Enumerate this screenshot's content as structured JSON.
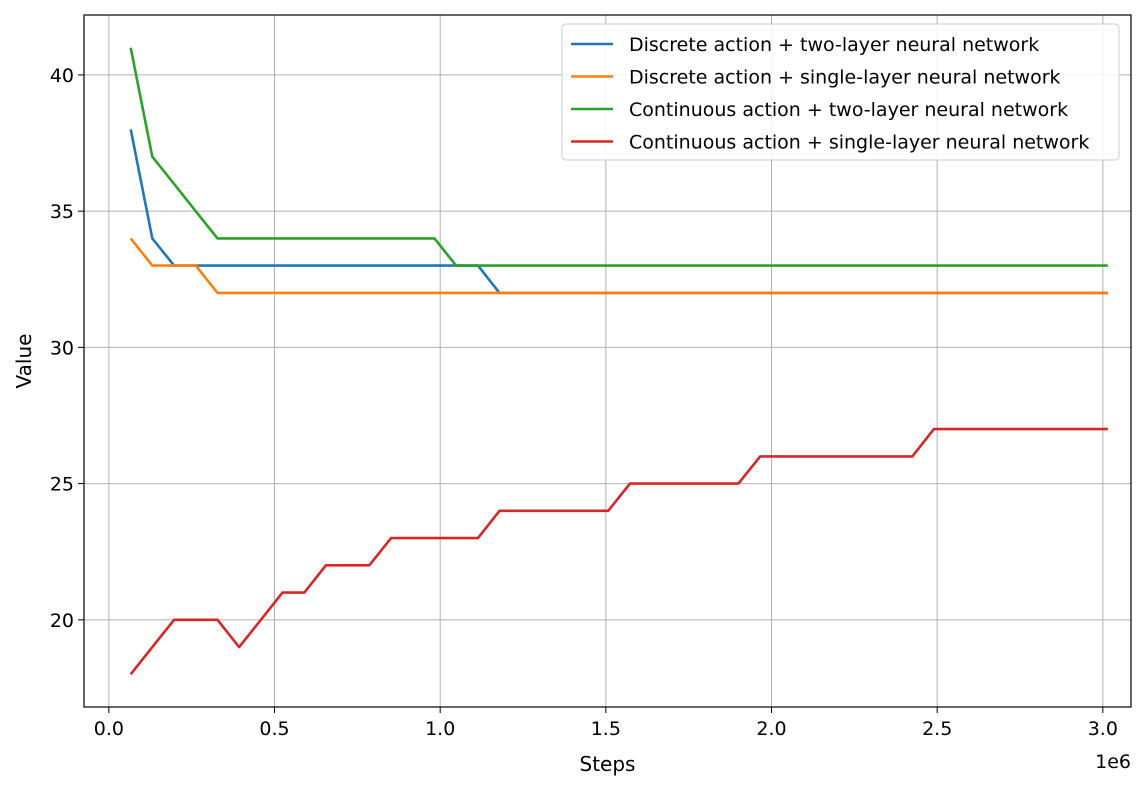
{
  "chart_data": {
    "type": "line",
    "title": "",
    "xlabel": "Steps",
    "ylabel": "Value",
    "x_scale_label": "1e6",
    "xlim": [
      -0.075,
      3.085
    ],
    "ylim": [
      16.8,
      42.2
    ],
    "xticks": [
      0.0,
      0.5,
      1.0,
      1.5,
      2.0,
      2.5,
      3.0
    ],
    "xtick_labels": [
      "0.0",
      "0.5",
      "1.0",
      "1.5",
      "2.0",
      "2.5",
      "3.0"
    ],
    "yticks": [
      20,
      25,
      30,
      35,
      40
    ],
    "ytick_labels": [
      "20",
      "25",
      "30",
      "35",
      "40"
    ],
    "grid": true,
    "legend_position": "top-right",
    "x": [
      0.066,
      0.131,
      0.197,
      0.262,
      0.328,
      0.393,
      0.459,
      0.524,
      0.59,
      0.655,
      0.721,
      0.786,
      0.852,
      0.917,
      0.983,
      1.048,
      1.114,
      1.179,
      1.245,
      1.31,
      1.376,
      1.442,
      1.507,
      1.573,
      1.638,
      1.704,
      1.769,
      1.835,
      1.9,
      1.966,
      2.032,
      2.097,
      2.163,
      2.228,
      2.294,
      2.359,
      2.425,
      2.49,
      2.556,
      2.621,
      2.687,
      2.752,
      2.818,
      2.883,
      2.949,
      3.015
    ],
    "series": [
      {
        "name": "Discrete action + two-layer neural network",
        "color": "#1f77b4",
        "values": [
          38,
          34,
          33,
          33,
          33,
          33,
          33,
          33,
          33,
          33,
          33,
          33,
          33,
          33,
          33,
          33,
          33,
          32,
          32,
          32,
          32,
          32,
          32,
          32,
          32,
          32,
          32,
          32,
          32,
          32,
          32,
          32,
          32,
          32,
          32,
          32,
          32,
          32,
          32,
          32,
          32,
          32,
          32,
          32,
          32,
          32
        ]
      },
      {
        "name": "Discrete action + single-layer neural network",
        "color": "#ff7f0e",
        "values": [
          34,
          33,
          33,
          33,
          32,
          32,
          32,
          32,
          32,
          32,
          32,
          32,
          32,
          32,
          32,
          32,
          32,
          32,
          32,
          32,
          32,
          32,
          32,
          32,
          32,
          32,
          32,
          32,
          32,
          32,
          32,
          32,
          32,
          32,
          32,
          32,
          32,
          32,
          32,
          32,
          32,
          32,
          32,
          32,
          32,
          32
        ]
      },
      {
        "name": "Continuous action + two-layer neural network",
        "color": "#2ca02c",
        "values": [
          41,
          37,
          36,
          35,
          34,
          34,
          34,
          34,
          34,
          34,
          34,
          34,
          34,
          34,
          34,
          33,
          33,
          33,
          33,
          33,
          33,
          33,
          33,
          33,
          33,
          33,
          33,
          33,
          33,
          33,
          33,
          33,
          33,
          33,
          33,
          33,
          33,
          33,
          33,
          33,
          33,
          33,
          33,
          33,
          33,
          33
        ]
      },
      {
        "name": "Continuous action + single-layer neural network",
        "color": "#d62728",
        "values": [
          18,
          19,
          20,
          20,
          20,
          19,
          20,
          21,
          21,
          22,
          22,
          22,
          23,
          23,
          23,
          23,
          23,
          24,
          24,
          24,
          24,
          24,
          24,
          25,
          25,
          25,
          25,
          25,
          25,
          26,
          26,
          26,
          26,
          26,
          26,
          26,
          26,
          27,
          27,
          27,
          27,
          27,
          27,
          27,
          27,
          27
        ]
      }
    ]
  }
}
